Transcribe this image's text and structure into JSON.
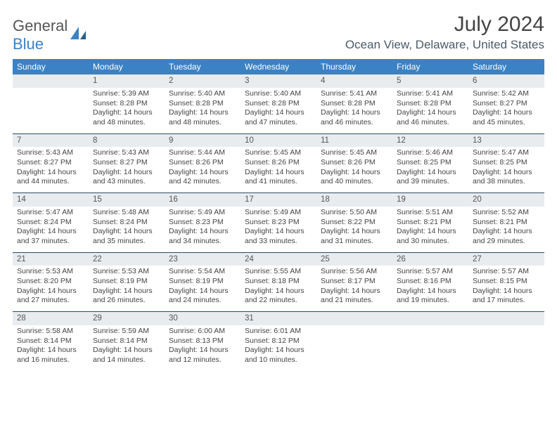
{
  "logo": {
    "word1": "General",
    "word2": "Blue"
  },
  "title": "July 2024",
  "location": "Ocean View, Delaware, United States",
  "colors": {
    "header_bg": "#3b82c4",
    "header_text": "#ffffff",
    "daynum_bg": "#e9ecef",
    "row_sep": "#2b4a63",
    "body_text": "#444444",
    "logo_gray": "#555555",
    "logo_blue": "#3b82c4"
  },
  "typography": {
    "title_fontsize": 30,
    "location_fontsize": 17,
    "dayheader_fontsize": 12,
    "cell_fontsize": 10.5
  },
  "day_headers": [
    "Sunday",
    "Monday",
    "Tuesday",
    "Wednesday",
    "Thursday",
    "Friday",
    "Saturday"
  ],
  "weeks": [
    [
      null,
      {
        "n": "1",
        "sr": "5:39 AM",
        "ss": "8:28 PM",
        "dl": "14 hours and 48 minutes."
      },
      {
        "n": "2",
        "sr": "5:40 AM",
        "ss": "8:28 PM",
        "dl": "14 hours and 48 minutes."
      },
      {
        "n": "3",
        "sr": "5:40 AM",
        "ss": "8:28 PM",
        "dl": "14 hours and 47 minutes."
      },
      {
        "n": "4",
        "sr": "5:41 AM",
        "ss": "8:28 PM",
        "dl": "14 hours and 46 minutes."
      },
      {
        "n": "5",
        "sr": "5:41 AM",
        "ss": "8:28 PM",
        "dl": "14 hours and 46 minutes."
      },
      {
        "n": "6",
        "sr": "5:42 AM",
        "ss": "8:27 PM",
        "dl": "14 hours and 45 minutes."
      }
    ],
    [
      {
        "n": "7",
        "sr": "5:43 AM",
        "ss": "8:27 PM",
        "dl": "14 hours and 44 minutes."
      },
      {
        "n": "8",
        "sr": "5:43 AM",
        "ss": "8:27 PM",
        "dl": "14 hours and 43 minutes."
      },
      {
        "n": "9",
        "sr": "5:44 AM",
        "ss": "8:26 PM",
        "dl": "14 hours and 42 minutes."
      },
      {
        "n": "10",
        "sr": "5:45 AM",
        "ss": "8:26 PM",
        "dl": "14 hours and 41 minutes."
      },
      {
        "n": "11",
        "sr": "5:45 AM",
        "ss": "8:26 PM",
        "dl": "14 hours and 40 minutes."
      },
      {
        "n": "12",
        "sr": "5:46 AM",
        "ss": "8:25 PM",
        "dl": "14 hours and 39 minutes."
      },
      {
        "n": "13",
        "sr": "5:47 AM",
        "ss": "8:25 PM",
        "dl": "14 hours and 38 minutes."
      }
    ],
    [
      {
        "n": "14",
        "sr": "5:47 AM",
        "ss": "8:24 PM",
        "dl": "14 hours and 37 minutes."
      },
      {
        "n": "15",
        "sr": "5:48 AM",
        "ss": "8:24 PM",
        "dl": "14 hours and 35 minutes."
      },
      {
        "n": "16",
        "sr": "5:49 AM",
        "ss": "8:23 PM",
        "dl": "14 hours and 34 minutes."
      },
      {
        "n": "17",
        "sr": "5:49 AM",
        "ss": "8:23 PM",
        "dl": "14 hours and 33 minutes."
      },
      {
        "n": "18",
        "sr": "5:50 AM",
        "ss": "8:22 PM",
        "dl": "14 hours and 31 minutes."
      },
      {
        "n": "19",
        "sr": "5:51 AM",
        "ss": "8:21 PM",
        "dl": "14 hours and 30 minutes."
      },
      {
        "n": "20",
        "sr": "5:52 AM",
        "ss": "8:21 PM",
        "dl": "14 hours and 29 minutes."
      }
    ],
    [
      {
        "n": "21",
        "sr": "5:53 AM",
        "ss": "8:20 PM",
        "dl": "14 hours and 27 minutes."
      },
      {
        "n": "22",
        "sr": "5:53 AM",
        "ss": "8:19 PM",
        "dl": "14 hours and 26 minutes."
      },
      {
        "n": "23",
        "sr": "5:54 AM",
        "ss": "8:19 PM",
        "dl": "14 hours and 24 minutes."
      },
      {
        "n": "24",
        "sr": "5:55 AM",
        "ss": "8:18 PM",
        "dl": "14 hours and 22 minutes."
      },
      {
        "n": "25",
        "sr": "5:56 AM",
        "ss": "8:17 PM",
        "dl": "14 hours and 21 minutes."
      },
      {
        "n": "26",
        "sr": "5:57 AM",
        "ss": "8:16 PM",
        "dl": "14 hours and 19 minutes."
      },
      {
        "n": "27",
        "sr": "5:57 AM",
        "ss": "8:15 PM",
        "dl": "14 hours and 17 minutes."
      }
    ],
    [
      {
        "n": "28",
        "sr": "5:58 AM",
        "ss": "8:14 PM",
        "dl": "14 hours and 16 minutes."
      },
      {
        "n": "29",
        "sr": "5:59 AM",
        "ss": "8:14 PM",
        "dl": "14 hours and 14 minutes."
      },
      {
        "n": "30",
        "sr": "6:00 AM",
        "ss": "8:13 PM",
        "dl": "14 hours and 12 minutes."
      },
      {
        "n": "31",
        "sr": "6:01 AM",
        "ss": "8:12 PM",
        "dl": "14 hours and 10 minutes."
      },
      null,
      null,
      null
    ]
  ],
  "labels": {
    "sunrise": "Sunrise:",
    "sunset": "Sunset:",
    "daylight": "Daylight:"
  }
}
